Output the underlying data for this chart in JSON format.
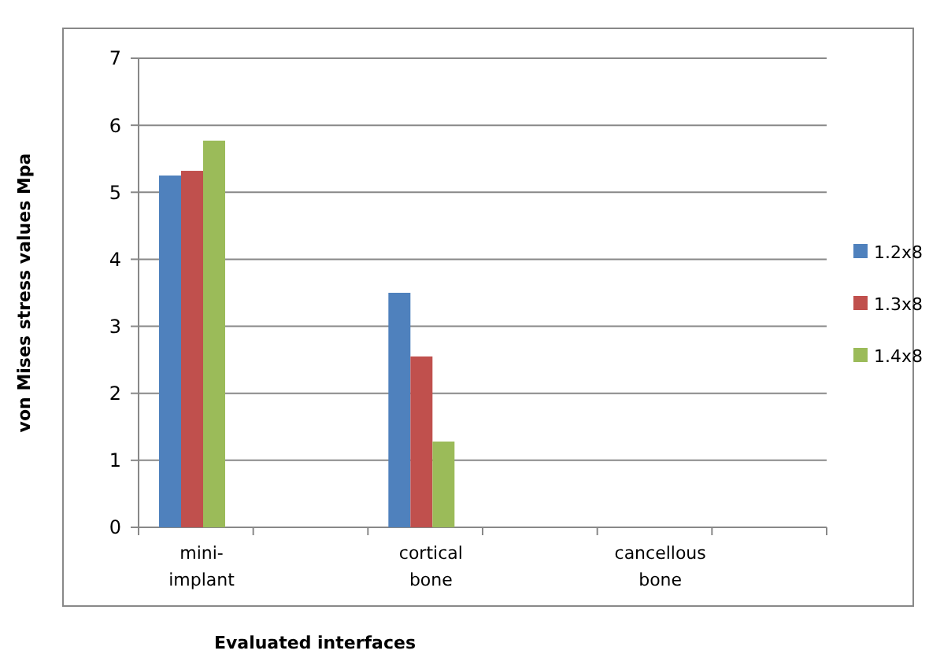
{
  "chart_data": {
    "type": "bar",
    "xlabel": "Evaluated interfaces",
    "ylabel": "von Mises stress values Mpa",
    "categories": [
      "mini-implant",
      "cortical bone",
      "cancellous bone"
    ],
    "series": [
      {
        "name": "1.2x8",
        "color": "#4f81bd",
        "values": [
          5.25,
          3.5,
          0
        ]
      },
      {
        "name": "1.3x8",
        "color": "#c0504d",
        "values": [
          5.32,
          2.55,
          0
        ]
      },
      {
        "name": "1.4x8",
        "color": "#9bbb59",
        "values": [
          5.77,
          1.28,
          0
        ]
      }
    ],
    "ylim": [
      0,
      7
    ],
    "yticks": [
      0,
      1,
      2,
      3,
      4,
      5,
      6,
      7
    ],
    "grid": "y",
    "legend": "right"
  }
}
